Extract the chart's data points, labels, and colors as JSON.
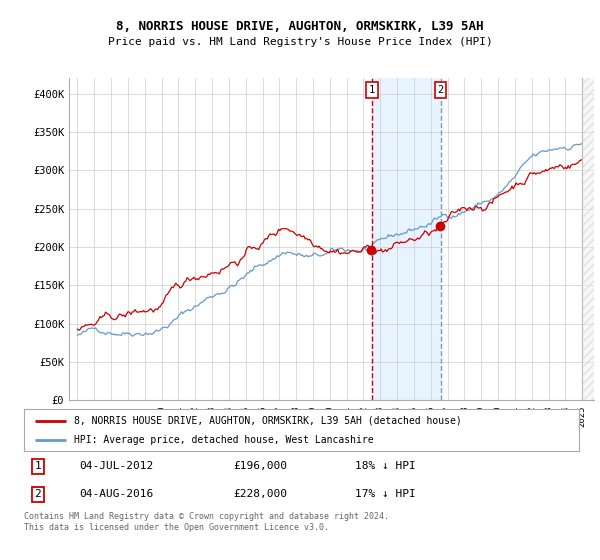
{
  "title": "8, NORRIS HOUSE DRIVE, AUGHTON, ORMSKIRK, L39 5AH",
  "subtitle": "Price paid vs. HM Land Registry's House Price Index (HPI)",
  "legend_label_red": "8, NORRIS HOUSE DRIVE, AUGHTON, ORMSKIRK, L39 5AH (detached house)",
  "legend_label_blue": "HPI: Average price, detached house, West Lancashire",
  "transaction_1_date": "04-JUL-2012",
  "transaction_1_price": "£196,000",
  "transaction_1_hpi": "18% ↓ HPI",
  "transaction_2_date": "04-AUG-2016",
  "transaction_2_price": "£228,000",
  "transaction_2_hpi": "17% ↓ HPI",
  "footer": "Contains HM Land Registry data © Crown copyright and database right 2024.\nThis data is licensed under the Open Government Licence v3.0.",
  "ylim": [
    0,
    420000
  ],
  "yticks": [
    0,
    50000,
    100000,
    150000,
    200000,
    250000,
    300000,
    350000,
    400000
  ],
  "color_red": "#cc0000",
  "color_blue": "#6699cc",
  "color_vline1": "#cc0000",
  "color_vline2": "#7799bb",
  "shade_color": "#ddeeff",
  "bg_color": "#ffffff",
  "grid_color": "#cccccc",
  "t1_year": 2012.5,
  "t2_year": 2016.583,
  "t1_price": 196000,
  "t2_price": 228000
}
